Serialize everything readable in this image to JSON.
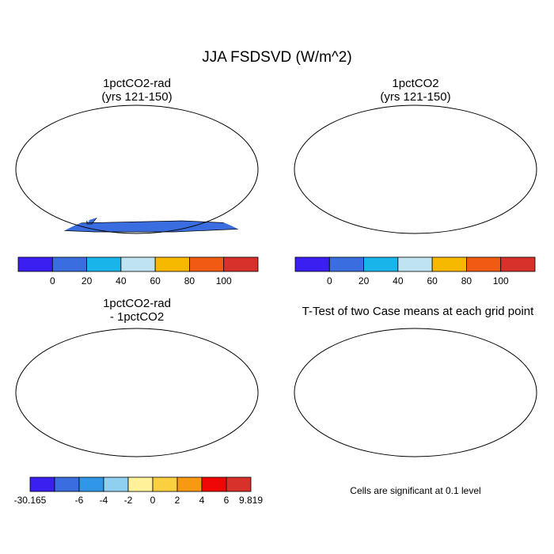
{
  "figure": {
    "title": "JJA FSDSVD (W/m^2)",
    "footnote": "Cells are significant at 0.1 level"
  },
  "panels": [
    {
      "id": "p1",
      "title_line1": "1pctCO2-rad",
      "title_line2": "(yrs 121-150)",
      "field": "absolute"
    },
    {
      "id": "p2",
      "title_line1": "1pctCO2",
      "title_line2": "(yrs 121-150)",
      "field": "absolute"
    },
    {
      "id": "p3",
      "title_line1": "1pctCO2-rad",
      "title_line2": "- 1pctCO2",
      "field": "difference"
    },
    {
      "id": "p4",
      "title_line1": "T-Test of two Case means at each grid point",
      "field": "significance"
    }
  ],
  "colorbar_abs": {
    "colors": [
      "#3b1ef0",
      "#3a6ee0",
      "#19b4ea",
      "#bfe3f1",
      "#f7b800",
      "#f05a12",
      "#d8302a"
    ],
    "labels": [
      "0",
      "20",
      "40",
      "60",
      "80",
      "100"
    ]
  },
  "colorbar_diff": {
    "colors": [
      "#3b1ef0",
      "#3a6ee0",
      "#2f96e8",
      "#8fd0f0",
      "#fff19a",
      "#fbd040",
      "#f79a12",
      "#ef0707",
      "#d8302a"
    ],
    "labels": [
      "-30.165",
      "-6",
      "-4",
      "-2",
      "0",
      "2",
      "4",
      "6",
      "9.819"
    ]
  },
  "colors": {
    "ocean": "#ffffff",
    "significant": "#ef0707",
    "coast": "#000000"
  }
}
